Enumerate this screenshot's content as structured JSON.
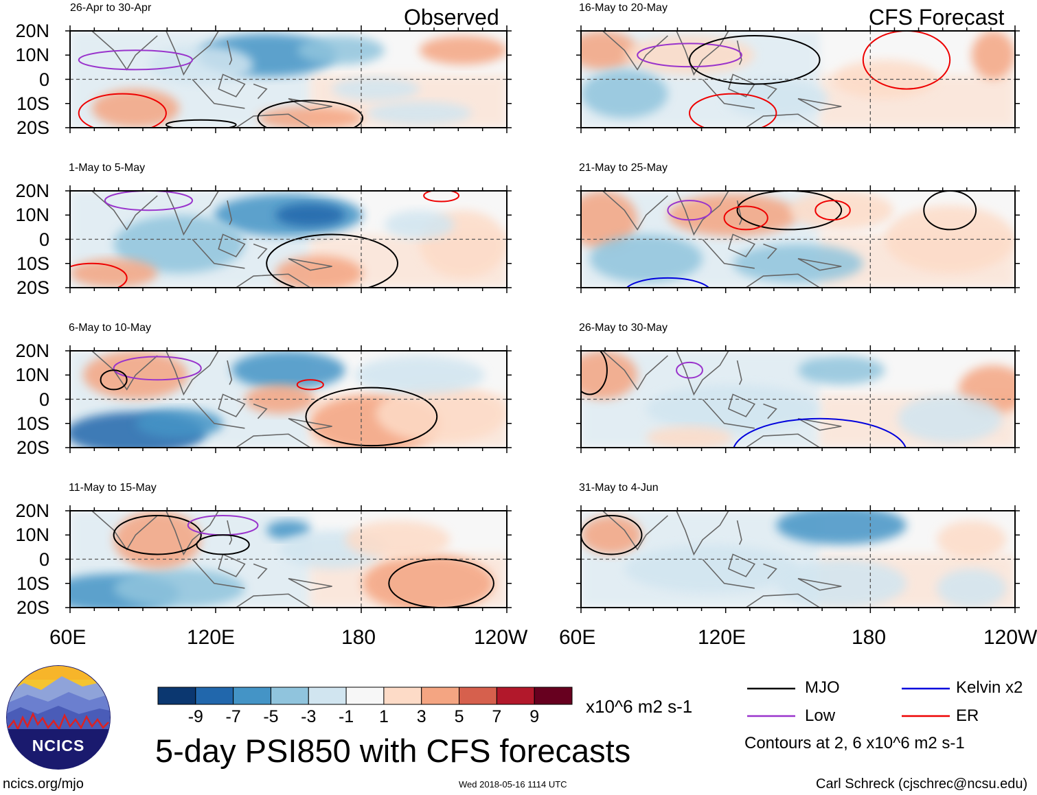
{
  "page": {
    "main_title": "5-day PSI850 with CFS forecasts",
    "panel_group_labels": {
      "observed": "Observed",
      "forecast": "CFS Forecast"
    },
    "footer": {
      "website": "ncics.org/mjo",
      "timestamp": "Wed 2018-05-16 1114 UTC",
      "author": "Carl Schreck (cjschrec@ncsu.edu)"
    },
    "logo_text": "NCICS"
  },
  "axes": {
    "lat_labels": [
      "20N",
      "10N",
      "0",
      "10S",
      "20S"
    ],
    "lon_labels": [
      "60E",
      "120E",
      "180",
      "120W"
    ],
    "lon_range_deg": [
      60,
      240
    ],
    "lat_range_deg": [
      -20,
      20
    ]
  },
  "colorbar": {
    "unit": "x10^6 m2 s-1",
    "tick_labels": [
      "-9",
      "-7",
      "-5",
      "-3",
      "-1",
      "1",
      "3",
      "5",
      "7",
      "9"
    ],
    "colors": [
      "#0b3770",
      "#2167ac",
      "#4494c6",
      "#90c4dd",
      "#d1e5f0",
      "#f7f7f7",
      "#fddbc7",
      "#f4a582",
      "#d6604d",
      "#b2182b",
      "#67001f"
    ]
  },
  "legend": {
    "items": [
      {
        "name": "MJO",
        "color": "#000000"
      },
      {
        "name": "Kelvin x2",
        "color": "#0000dd"
      },
      {
        "name": "Low",
        "color": "#9933cc"
      },
      {
        "name": "ER",
        "color": "#ee0000"
      }
    ],
    "note": "Contours at 2, 6 x10^6 m2 s-1"
  },
  "panels": [
    {
      "id": "obs-1",
      "column": "observed",
      "title": "26-Apr to 30-Apr"
    },
    {
      "id": "obs-2",
      "column": "observed",
      "title": "1-May to 5-May"
    },
    {
      "id": "obs-3",
      "column": "observed",
      "title": "6-May to 10-May"
    },
    {
      "id": "obs-4",
      "column": "observed",
      "title": "11-May to 15-May"
    },
    {
      "id": "fc-1",
      "column": "forecast",
      "title": "16-May to 20-May"
    },
    {
      "id": "fc-2",
      "column": "forecast",
      "title": "21-May to 25-May"
    },
    {
      "id": "fc-3",
      "column": "forecast",
      "title": "26-May to 30-May"
    },
    {
      "id": "fc-4",
      "column": "forecast",
      "title": "31-May to 4-Jun"
    }
  ]
}
